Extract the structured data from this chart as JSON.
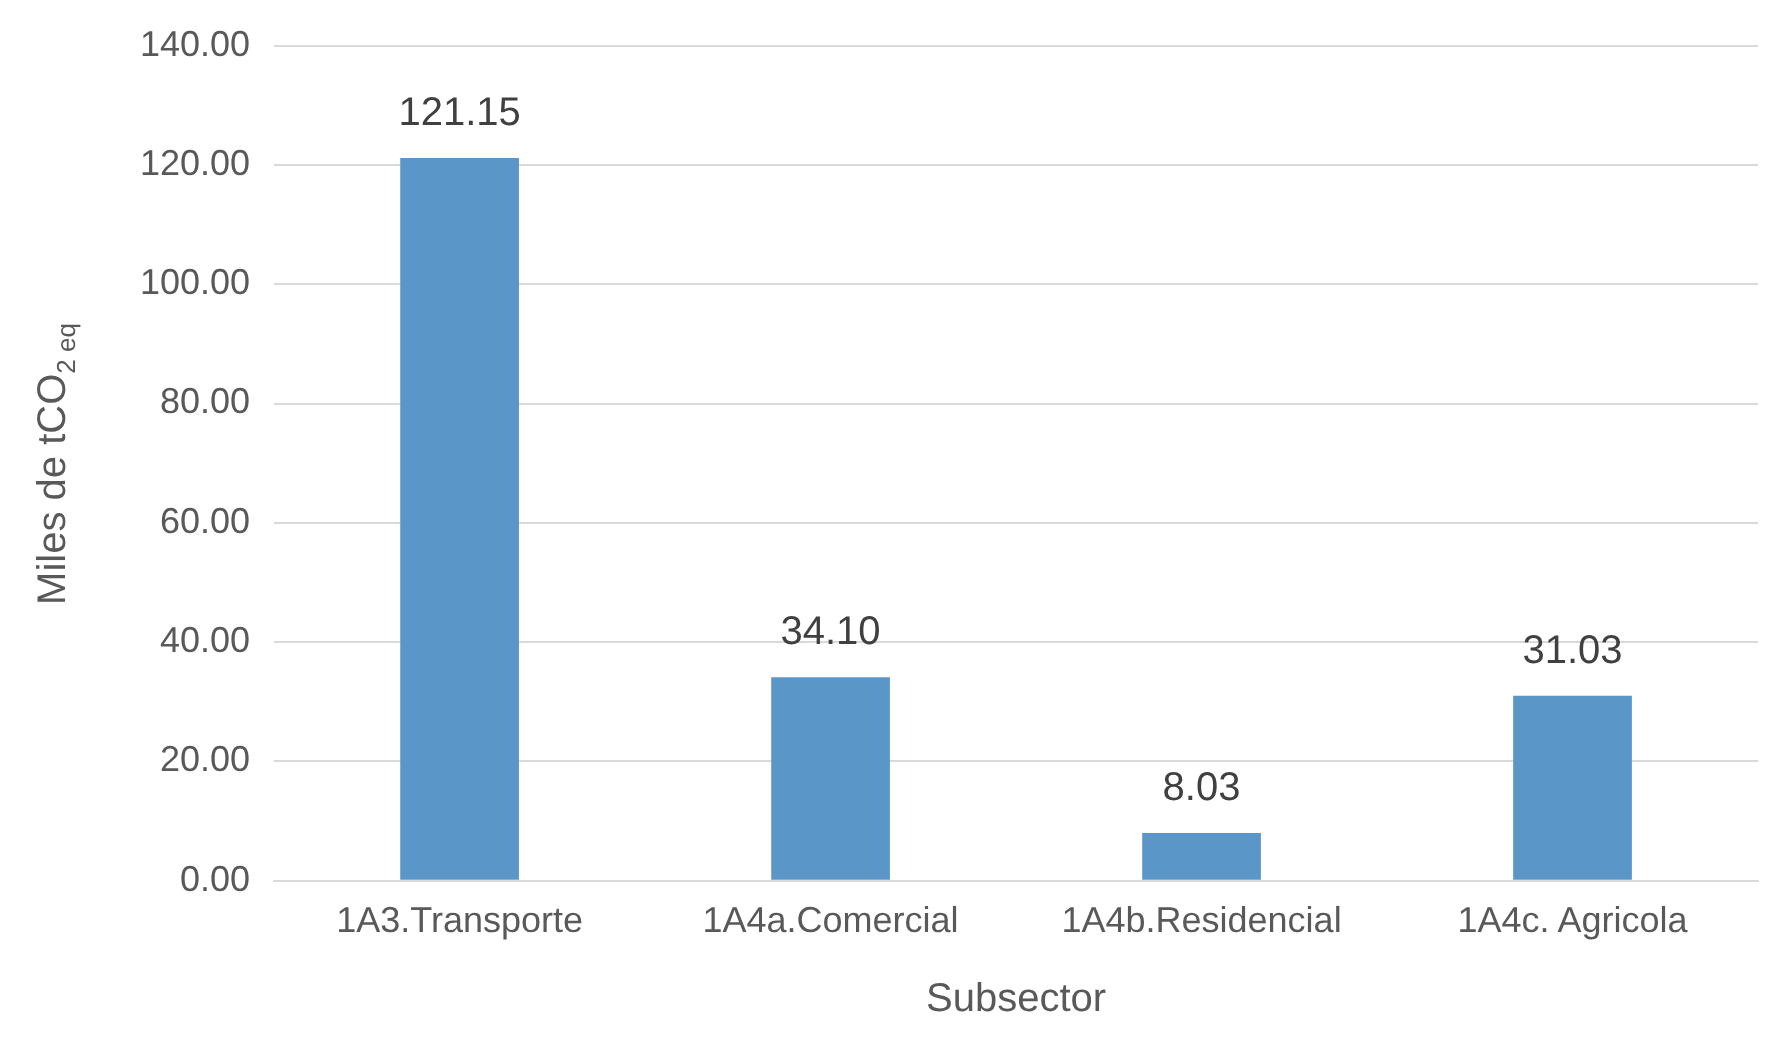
{
  "chart_data": {
    "type": "bar",
    "xlabel": "Subsector",
    "ylabel": "Miles de tCO$_{2 eq}$",
    "categories": [
      "1A3.Transporte",
      "1A4a.Comercial",
      "1A4b.Residencial",
      "1A4c. Agricola"
    ],
    "values": [
      121.15,
      34.1,
      8.03,
      31.03
    ],
    "value_labels": [
      "121.15",
      "34.10",
      "8.03",
      "31.03"
    ],
    "color": "#5b96c9",
    "ylim": [
      0,
      140
    ],
    "yticks": [
      {
        "value": 0,
        "label": "0.00"
      },
      {
        "value": 20,
        "label": "20.00"
      },
      {
        "value": 40,
        "label": "40.00"
      },
      {
        "value": 60,
        "label": "60.00"
      },
      {
        "value": 80,
        "label": "80.00"
      },
      {
        "value": 100,
        "label": "100.00"
      },
      {
        "value": 120,
        "label": "120.00"
      },
      {
        "value": 140,
        "label": "140.00"
      }
    ],
    "grid": "y",
    "legend": false
  }
}
